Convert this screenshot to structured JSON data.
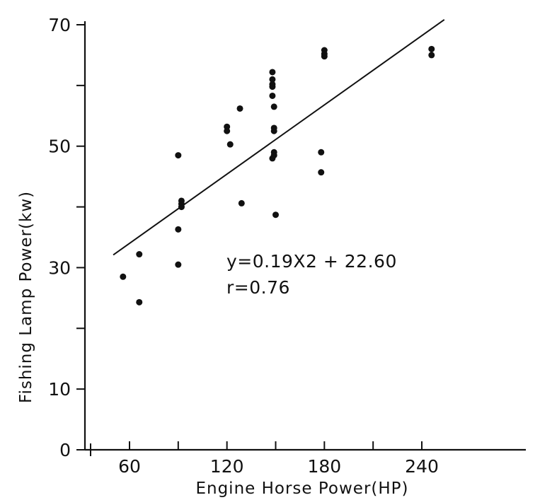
{
  "chart_data": {
    "type": "scatter",
    "title": "",
    "xlabel": "Engine Horse Power(HP)",
    "ylabel": "Fishing Lamp Power(kw)",
    "xlim": [
      45,
      265
    ],
    "ylim": [
      0,
      70
    ],
    "x_ticks": [
      60,
      120,
      180,
      240
    ],
    "x_tick_labels": [
      "60",
      "120",
      "180",
      "240"
    ],
    "x_minor_ticks": [
      90,
      150,
      210
    ],
    "y_ticks": [
      0,
      10,
      30,
      50,
      70
    ],
    "y_tick_labels": [
      "0",
      "10",
      "30",
      "50",
      "70"
    ],
    "y_minor_ticks": [
      20,
      40,
      60
    ],
    "grid": false,
    "legend": "none",
    "points": [
      [
        56,
        28.5
      ],
      [
        66,
        32.2
      ],
      [
        66,
        24.3
      ],
      [
        90,
        48.5
      ],
      [
        90,
        36.3
      ],
      [
        90,
        30.5
      ],
      [
        92,
        41.0
      ],
      [
        92,
        40.5
      ],
      [
        92,
        40.0
      ],
      [
        120,
        53.2
      ],
      [
        120,
        52.5
      ],
      [
        122,
        50.3
      ],
      [
        128,
        56.2
      ],
      [
        129,
        40.6
      ],
      [
        148,
        62.2
      ],
      [
        148,
        61.0
      ],
      [
        148,
        60.2
      ],
      [
        148,
        59.8
      ],
      [
        148,
        58.3
      ],
      [
        148,
        48.0
      ],
      [
        149,
        56.5
      ],
      [
        149,
        53.0
      ],
      [
        149,
        52.5
      ],
      [
        149,
        49.0
      ],
      [
        149,
        48.5
      ],
      [
        150,
        38.7
      ],
      [
        178,
        49.0
      ],
      [
        178,
        45.7
      ],
      [
        180,
        65.8
      ],
      [
        180,
        65.2
      ],
      [
        180,
        64.8
      ],
      [
        246,
        66.0
      ],
      [
        246,
        65.0
      ]
    ],
    "regression": {
      "x_start": 50,
      "x_end": 246,
      "slope": 0.19,
      "intercept": 22.6
    },
    "annotations": [
      "y=0.19X2 + 22.60",
      "r=0.76"
    ]
  },
  "colors": {
    "ink": "#111111",
    "background": "#ffffff"
  }
}
